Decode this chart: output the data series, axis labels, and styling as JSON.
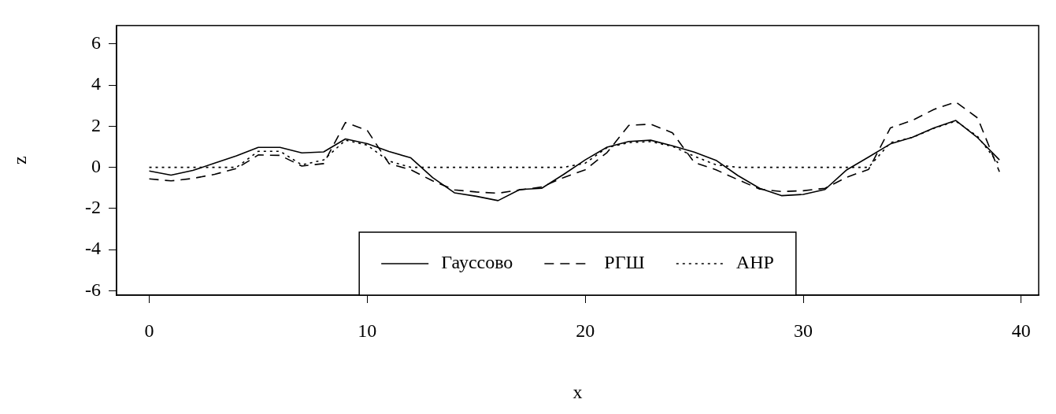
{
  "chart_data": {
    "type": "line",
    "xlabel": "x",
    "ylabel": "z",
    "x": [
      0,
      1,
      2,
      3,
      4,
      5,
      6,
      7,
      8,
      9,
      10,
      11,
      12,
      13,
      14,
      15,
      16,
      17,
      18,
      19,
      20,
      21,
      22,
      23,
      24,
      25,
      26,
      27,
      28,
      29,
      30,
      31,
      32,
      33,
      34,
      35,
      36,
      37,
      38,
      39
    ],
    "xlim": [
      -1.5,
      40.8
    ],
    "xticks": [
      0,
      10,
      20,
      30,
      40
    ],
    "ylim": [
      -6.22,
      6.9
    ],
    "yticks": [
      -6,
      -4,
      -2,
      0,
      2,
      4,
      6
    ],
    "grid": false,
    "legend": "bottom",
    "marker": "none",
    "series": [
      {
        "name": "Гауссово",
        "color": "#000000",
        "line_style": "solid",
        "values": [
          -0.18,
          -0.38,
          -0.15,
          0.2,
          0.56,
          0.97,
          0.97,
          0.7,
          0.75,
          1.38,
          1.15,
          0.77,
          0.46,
          -0.5,
          -1.24,
          -1.41,
          -1.62,
          -1.08,
          -1.02,
          -0.35,
          0.36,
          0.98,
          1.26,
          1.32,
          1.05,
          0.74,
          0.34,
          -0.4,
          -1.02,
          -1.38,
          -1.32,
          -1.08,
          -0.12,
          0.5,
          1.14,
          1.46,
          1.92,
          2.28,
          1.44,
          0.36
        ]
      },
      {
        "name": "РГШ",
        "color": "#000000",
        "line_style": "dashed",
        "values": [
          -0.56,
          -0.66,
          -0.54,
          -0.34,
          -0.06,
          0.6,
          0.58,
          0.06,
          0.18,
          2.18,
          1.8,
          0.18,
          -0.12,
          -0.66,
          -1.1,
          -1.2,
          -1.26,
          -1.1,
          -0.96,
          -0.5,
          -0.12,
          0.72,
          2.04,
          2.1,
          1.68,
          0.24,
          -0.12,
          -0.6,
          -1.06,
          -1.18,
          -1.14,
          -1.02,
          -0.48,
          -0.1,
          1.92,
          2.28,
          2.82,
          3.18,
          2.4,
          -0.22
        ]
      },
      {
        "name": "AHP",
        "color": "#000000",
        "line_style": "dotted",
        "values": [
          0,
          0,
          0,
          0,
          0,
          0.78,
          0.78,
          0.12,
          0.36,
          1.32,
          1.08,
          0.3,
          0,
          0,
          0,
          0,
          0,
          0,
          0,
          0,
          0.2,
          0.96,
          1.2,
          1.25,
          1.02,
          0.54,
          0.12,
          0,
          0,
          0,
          0,
          0,
          0,
          0,
          1.2,
          1.45,
          1.9,
          2.25,
          1.5,
          0.12
        ]
      }
    ]
  }
}
